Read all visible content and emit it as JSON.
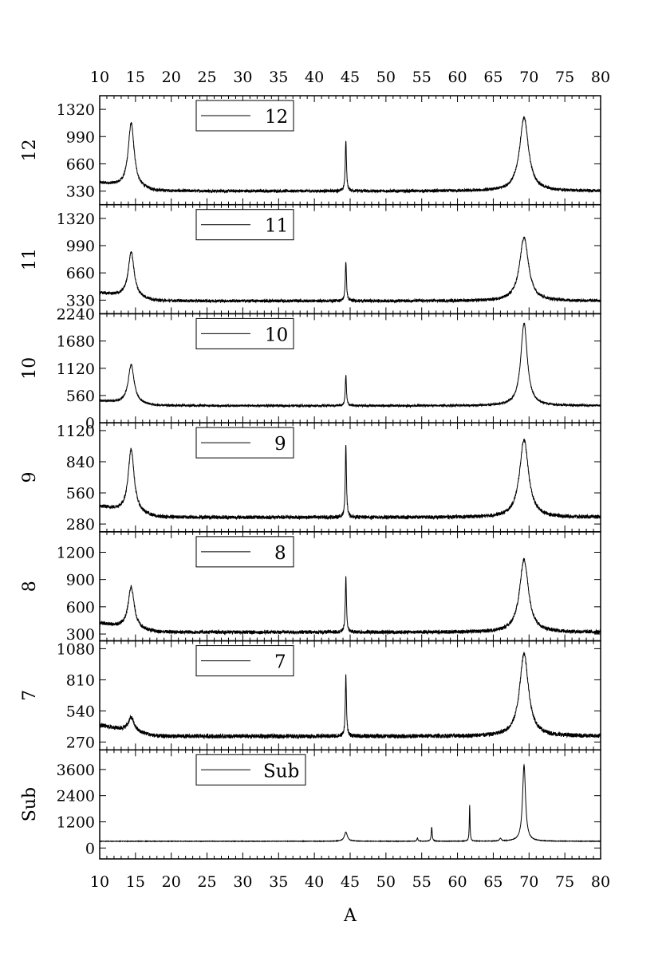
{
  "chart_data": {
    "type": "line",
    "xlabel": "A",
    "xlim": [
      10,
      80
    ],
    "x_ticks": [
      10,
      15,
      20,
      25,
      30,
      35,
      40,
      45,
      50,
      55,
      60,
      65,
      70,
      75,
      80
    ],
    "panels": [
      {
        "name": "12",
        "ylabel": "12",
        "legend": "12",
        "ylim": [
          165,
          1485
        ],
        "yticks": [
          330,
          660,
          990,
          1320
        ],
        "baseline": 330,
        "noise": 18,
        "peaks": [
          {
            "x": 14.4,
            "height": 780,
            "width": 0.5
          },
          {
            "x": 44.4,
            "height": 620,
            "width": 0.1
          },
          {
            "x": 69.3,
            "height": 890,
            "width": 0.75
          }
        ]
      },
      {
        "name": "11",
        "ylabel": "11",
        "legend": "11",
        "ylim": [
          165,
          1485
        ],
        "yticks": [
          330,
          660,
          990,
          1320
        ],
        "baseline": 320,
        "noise": 18,
        "peaks": [
          {
            "x": 14.4,
            "height": 550,
            "width": 0.5
          },
          {
            "x": 44.4,
            "height": 480,
            "width": 0.1
          },
          {
            "x": 69.3,
            "height": 770,
            "width": 0.75
          }
        ]
      },
      {
        "name": "10",
        "ylabel": "10",
        "legend": "10",
        "ylim": [
          0,
          2240
        ],
        "yticks": [
          0,
          560,
          1120,
          1680,
          2240
        ],
        "baseline": 350,
        "noise": 22,
        "peaks": [
          {
            "x": 14.4,
            "height": 800,
            "width": 0.5
          },
          {
            "x": 44.4,
            "height": 620,
            "width": 0.1
          },
          {
            "x": 69.3,
            "height": 1700,
            "width": 0.55
          }
        ]
      },
      {
        "name": "9",
        "ylabel": "9",
        "legend": "9",
        "ylim": [
          210,
          1190
        ],
        "yticks": [
          280,
          560,
          840,
          1120
        ],
        "baseline": 340,
        "noise": 16,
        "peaks": [
          {
            "x": 14.4,
            "height": 570,
            "width": 0.5
          },
          {
            "x": 44.4,
            "height": 640,
            "width": 0.1
          },
          {
            "x": 69.3,
            "height": 700,
            "width": 0.75
          }
        ]
      },
      {
        "name": "8",
        "ylabel": "8",
        "legend": "8",
        "ylim": [
          225,
          1425
        ],
        "yticks": [
          300,
          600,
          900,
          1200
        ],
        "baseline": 320,
        "noise": 20,
        "peaks": [
          {
            "x": 14.4,
            "height": 460,
            "width": 0.5
          },
          {
            "x": 44.4,
            "height": 600,
            "width": 0.1
          },
          {
            "x": 69.3,
            "height": 800,
            "width": 0.75
          }
        ]
      },
      {
        "name": "7",
        "ylabel": "7",
        "legend": "7",
        "ylim": [
          202,
          1148
        ],
        "yticks": [
          270,
          540,
          810,
          1080
        ],
        "baseline": 320,
        "noise": 18,
        "peaks": [
          {
            "x": 14.4,
            "height": 120,
            "width": 0.5
          },
          {
            "x": 44.4,
            "height": 520,
            "width": 0.1
          },
          {
            "x": 69.3,
            "height": 720,
            "width": 0.75
          }
        ]
      },
      {
        "name": "Sub",
        "ylabel": "Sub",
        "legend": "Sub",
        "ylim": [
          -500,
          4500
        ],
        "yticks": [
          0,
          1200,
          2400,
          3600
        ],
        "baseline": 310,
        "noise": 10,
        "peaks": [
          {
            "x": 44.4,
            "height": 420,
            "width": 0.25
          },
          {
            "x": 54.4,
            "height": 150,
            "width": 0.08
          },
          {
            "x": 56.4,
            "height": 650,
            "width": 0.08
          },
          {
            "x": 61.7,
            "height": 1650,
            "width": 0.06
          },
          {
            "x": 66.0,
            "height": 120,
            "width": 0.15
          },
          {
            "x": 69.3,
            "height": 3500,
            "width": 0.25
          }
        ]
      }
    ]
  }
}
